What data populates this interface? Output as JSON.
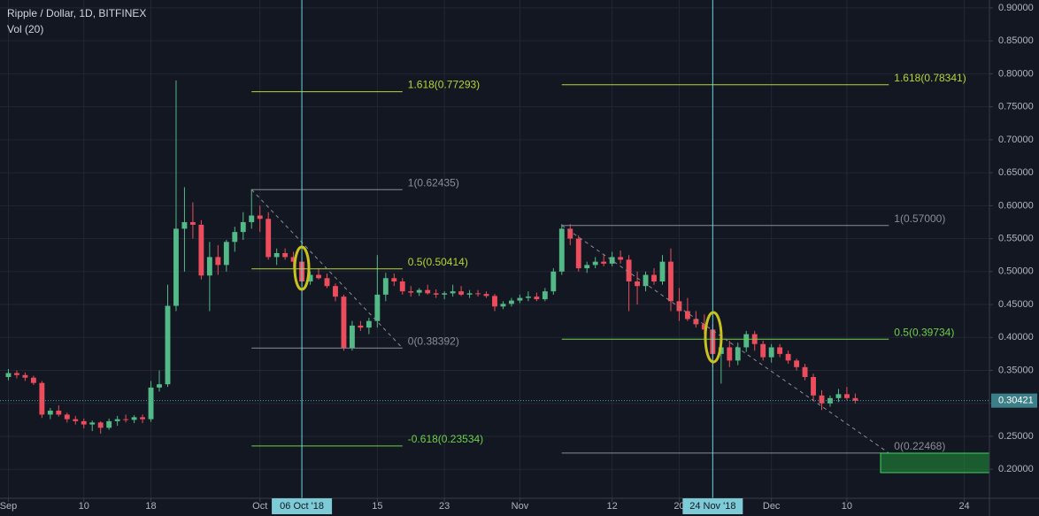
{
  "chart_data": {
    "type": "candlestick",
    "title": "Ripple / Dollar, 1D, BITFINEX",
    "subtitle": "Vol (20)",
    "up_color": "#53b987",
    "down_color": "#eb4d5c",
    "x": [
      "2018-09-01",
      "2018-09-02",
      "2018-09-03",
      "2018-09-04",
      "2018-09-05",
      "2018-09-06",
      "2018-09-07",
      "2018-09-08",
      "2018-09-09",
      "2018-09-10",
      "2018-09-11",
      "2018-09-12",
      "2018-09-13",
      "2018-09-14",
      "2018-09-15",
      "2018-09-16",
      "2018-09-17",
      "2018-09-18",
      "2018-09-19",
      "2018-09-20",
      "2018-09-21",
      "2018-09-22",
      "2018-09-23",
      "2018-09-24",
      "2018-09-25",
      "2018-09-26",
      "2018-09-27",
      "2018-09-28",
      "2018-09-29",
      "2018-09-30",
      "2018-10-01",
      "2018-10-02",
      "2018-10-03",
      "2018-10-04",
      "2018-10-05",
      "2018-10-06",
      "2018-10-07",
      "2018-10-08",
      "2018-10-09",
      "2018-10-10",
      "2018-10-11",
      "2018-10-12",
      "2018-10-13",
      "2018-10-14",
      "2018-10-15",
      "2018-10-16",
      "2018-10-17",
      "2018-10-18",
      "2018-10-19",
      "2018-10-20",
      "2018-10-21",
      "2018-10-22",
      "2018-10-23",
      "2018-10-24",
      "2018-10-25",
      "2018-10-26",
      "2018-10-27",
      "2018-10-28",
      "2018-10-29",
      "2018-10-30",
      "2018-10-31",
      "2018-11-01",
      "2018-11-02",
      "2018-11-03",
      "2018-11-04",
      "2018-11-05",
      "2018-11-06",
      "2018-11-07",
      "2018-11-08",
      "2018-11-09",
      "2018-11-10",
      "2018-11-11",
      "2018-11-12",
      "2018-11-13",
      "2018-11-14",
      "2018-11-15",
      "2018-11-16",
      "2018-11-17",
      "2018-11-18",
      "2018-11-19",
      "2018-11-20",
      "2018-11-21",
      "2018-11-22",
      "2018-11-23",
      "2018-11-24",
      "2018-11-25",
      "2018-11-26",
      "2018-11-27",
      "2018-11-28",
      "2018-11-29",
      "2018-11-30",
      "2018-12-01",
      "2018-12-02",
      "2018-12-03",
      "2018-12-04",
      "2018-12-05",
      "2018-12-06",
      "2018-12-07",
      "2018-12-08",
      "2018-12-09",
      "2018-12-10",
      "2018-12-11"
    ],
    "open": [
      0.34,
      0.346,
      0.343,
      0.339,
      0.331,
      0.283,
      0.289,
      0.283,
      0.276,
      0.273,
      0.268,
      0.271,
      0.263,
      0.273,
      0.276,
      0.275,
      0.279,
      0.276,
      0.324,
      0.329,
      0.448,
      0.565,
      0.575,
      0.571,
      0.494,
      0.522,
      0.51,
      0.545,
      0.56,
      0.575,
      0.585,
      0.58,
      0.522,
      0.528,
      0.522,
      0.515,
      0.485,
      0.495,
      0.49,
      0.478,
      0.462,
      0.384,
      0.418,
      0.415,
      0.425,
      0.465,
      0.49,
      0.485,
      0.47,
      0.468,
      0.472,
      0.467,
      0.465,
      0.467,
      0.47,
      0.465,
      0.467,
      0.466,
      0.463,
      0.447,
      0.451,
      0.456,
      0.46,
      0.462,
      0.458,
      0.47,
      0.5,
      0.565,
      0.55,
      0.505,
      0.51,
      0.515,
      0.512,
      0.522,
      0.518,
      0.485,
      0.478,
      0.495,
      0.485,
      0.515,
      0.455,
      0.44,
      0.428,
      0.42,
      0.412,
      0.375,
      0.385,
      0.365,
      0.385,
      0.405,
      0.39,
      0.37,
      0.385,
      0.375,
      0.365,
      0.355,
      0.34,
      0.312,
      0.3,
      0.308,
      0.314,
      0.308
    ],
    "high": [
      0.352,
      0.35,
      0.347,
      0.342,
      0.334,
      0.293,
      0.297,
      0.286,
      0.281,
      0.277,
      0.274,
      0.273,
      0.277,
      0.281,
      0.283,
      0.282,
      0.283,
      0.334,
      0.35,
      0.48,
      0.79,
      0.628,
      0.605,
      0.578,
      0.545,
      0.54,
      0.548,
      0.568,
      0.59,
      0.625,
      0.6,
      0.59,
      0.535,
      0.535,
      0.53,
      0.522,
      0.5,
      0.505,
      0.497,
      0.482,
      0.465,
      0.425,
      0.425,
      0.43,
      0.525,
      0.498,
      0.497,
      0.49,
      0.478,
      0.475,
      0.48,
      0.473,
      0.47,
      0.48,
      0.478,
      0.472,
      0.472,
      0.47,
      0.466,
      0.455,
      0.46,
      0.465,
      0.47,
      0.468,
      0.475,
      0.505,
      0.572,
      0.572,
      0.555,
      0.515,
      0.522,
      0.525,
      0.53,
      0.532,
      0.525,
      0.5,
      0.5,
      0.505,
      0.525,
      0.535,
      0.475,
      0.46,
      0.44,
      0.435,
      0.42,
      0.405,
      0.395,
      0.392,
      0.41,
      0.41,
      0.395,
      0.39,
      0.39,
      0.38,
      0.368,
      0.36,
      0.345,
      0.32,
      0.312,
      0.322,
      0.325,
      0.315
    ],
    "low": [
      0.335,
      0.338,
      0.334,
      0.328,
      0.278,
      0.276,
      0.28,
      0.271,
      0.268,
      0.262,
      0.258,
      0.254,
      0.26,
      0.266,
      0.271,
      0.27,
      0.27,
      0.272,
      0.318,
      0.325,
      0.44,
      0.5,
      0.55,
      0.488,
      0.44,
      0.495,
      0.5,
      0.53,
      0.548,
      0.565,
      0.56,
      0.518,
      0.51,
      0.518,
      0.505,
      0.478,
      0.48,
      0.488,
      0.475,
      0.455,
      0.38,
      0.38,
      0.41,
      0.405,
      0.415,
      0.455,
      0.478,
      0.465,
      0.462,
      0.463,
      0.465,
      0.46,
      0.458,
      0.462,
      0.463,
      0.46,
      0.462,
      0.46,
      0.44,
      0.443,
      0.447,
      0.452,
      0.455,
      0.455,
      0.455,
      0.465,
      0.495,
      0.54,
      0.5,
      0.498,
      0.505,
      0.508,
      0.508,
      0.512,
      0.44,
      0.45,
      0.47,
      0.48,
      0.48,
      0.44,
      0.425,
      0.425,
      0.415,
      0.405,
      0.355,
      0.33,
      0.355,
      0.358,
      0.378,
      0.38,
      0.365,
      0.362,
      0.37,
      0.36,
      0.35,
      0.335,
      0.305,
      0.29,
      0.295,
      0.302,
      0.305,
      0.3
    ],
    "close": [
      0.346,
      0.343,
      0.339,
      0.331,
      0.283,
      0.289,
      0.283,
      0.276,
      0.273,
      0.268,
      0.271,
      0.263,
      0.273,
      0.276,
      0.275,
      0.279,
      0.276,
      0.324,
      0.329,
      0.448,
      0.565,
      0.575,
      0.571,
      0.494,
      0.522,
      0.51,
      0.545,
      0.56,
      0.575,
      0.585,
      0.58,
      0.522,
      0.528,
      0.522,
      0.515,
      0.485,
      0.495,
      0.49,
      0.478,
      0.462,
      0.384,
      0.418,
      0.415,
      0.425,
      0.465,
      0.49,
      0.485,
      0.47,
      0.468,
      0.472,
      0.467,
      0.465,
      0.467,
      0.47,
      0.465,
      0.467,
      0.466,
      0.463,
      0.447,
      0.451,
      0.456,
      0.46,
      0.462,
      0.458,
      0.47,
      0.5,
      0.565,
      0.55,
      0.505,
      0.51,
      0.515,
      0.512,
      0.522,
      0.518,
      0.485,
      0.478,
      0.495,
      0.485,
      0.515,
      0.455,
      0.44,
      0.428,
      0.42,
      0.412,
      0.375,
      0.385,
      0.365,
      0.385,
      0.405,
      0.39,
      0.37,
      0.385,
      0.375,
      0.365,
      0.355,
      0.34,
      0.312,
      0.3,
      0.308,
      0.314,
      0.308,
      0.304
    ],
    "xlim": [
      "2018-08-31",
      "2018-12-27"
    ],
    "xticks": [
      {
        "value": "2018-09-01",
        "label": "Sep"
      },
      {
        "value": "2018-09-10",
        "label": "10"
      },
      {
        "value": "2018-09-18",
        "label": "18"
      },
      {
        "value": "2018-10-01",
        "label": "Oct"
      },
      {
        "value": "2018-10-15",
        "label": "15"
      },
      {
        "value": "2018-10-23",
        "label": "23"
      },
      {
        "value": "2018-11-01",
        "label": "Nov"
      },
      {
        "value": "2018-11-12",
        "label": "12"
      },
      {
        "value": "2018-11-20",
        "label": "20"
      },
      {
        "value": "2018-12-01",
        "label": "Dec"
      },
      {
        "value": "2018-12-10",
        "label": "10"
      },
      {
        "value": "2018-12-24",
        "label": "24"
      }
    ],
    "ylim": [
      0.156,
      0.912
    ],
    "yticks": [
      {
        "value": 0.2,
        "label": "0.20000"
      },
      {
        "value": 0.25,
        "label": "0.25000"
      },
      {
        "value": 0.3,
        "label": "0.30000"
      },
      {
        "value": 0.35,
        "label": "0.35000"
      },
      {
        "value": 0.4,
        "label": "0.40000"
      },
      {
        "value": 0.45,
        "label": "0.45000"
      },
      {
        "value": 0.5,
        "label": "0.50000"
      },
      {
        "value": 0.55,
        "label": "0.55000"
      },
      {
        "value": 0.6,
        "label": "0.60000"
      },
      {
        "value": 0.65,
        "label": "0.65000"
      },
      {
        "value": 0.7,
        "label": "0.70000"
      },
      {
        "value": 0.75,
        "label": "0.75000"
      },
      {
        "value": 0.8,
        "label": "0.80000"
      },
      {
        "value": 0.85,
        "label": "0.85000"
      },
      {
        "value": 0.9,
        "label": "0.90000"
      }
    ],
    "grid": true,
    "last_price": 0.30421,
    "markers": [
      {
        "x": "2018-10-06",
        "label": "06 Oct '18"
      },
      {
        "x": "2018-11-24",
        "label": "24 Nov '18"
      }
    ],
    "fib_groups": [
      {
        "x0": "2018-09-30",
        "x1": "2018-10-18",
        "levels": [
          {
            "label": "1.618(0.77293)",
            "value": 0.77293,
            "color": "#b8d435"
          },
          {
            "label": "1(0.62435)",
            "value": 0.62435,
            "color": "#8a8d96"
          },
          {
            "label": "0.5(0.50414)",
            "value": 0.50414,
            "color": "#b8d435"
          },
          {
            "label": "0(0.38392)",
            "value": 0.38392,
            "color": "#8a8d96"
          },
          {
            "label": "-0.618(0.23534)",
            "value": 0.23534,
            "color": "#6fd04a"
          }
        ]
      },
      {
        "x0": "2018-11-06",
        "x1": "2018-12-15",
        "levels": [
          {
            "label": "1.618(0.78341)",
            "value": 0.78341,
            "color": "#b8d435"
          },
          {
            "label": "1(0.57000)",
            "value": 0.57,
            "color": "#8a8d96"
          },
          {
            "label": "0.5(0.39734)",
            "value": 0.39734,
            "color": "#6fd04a"
          },
          {
            "label": "0(0.22468)",
            "value": 0.22468,
            "color": "#8a8d96"
          }
        ]
      }
    ]
  }
}
